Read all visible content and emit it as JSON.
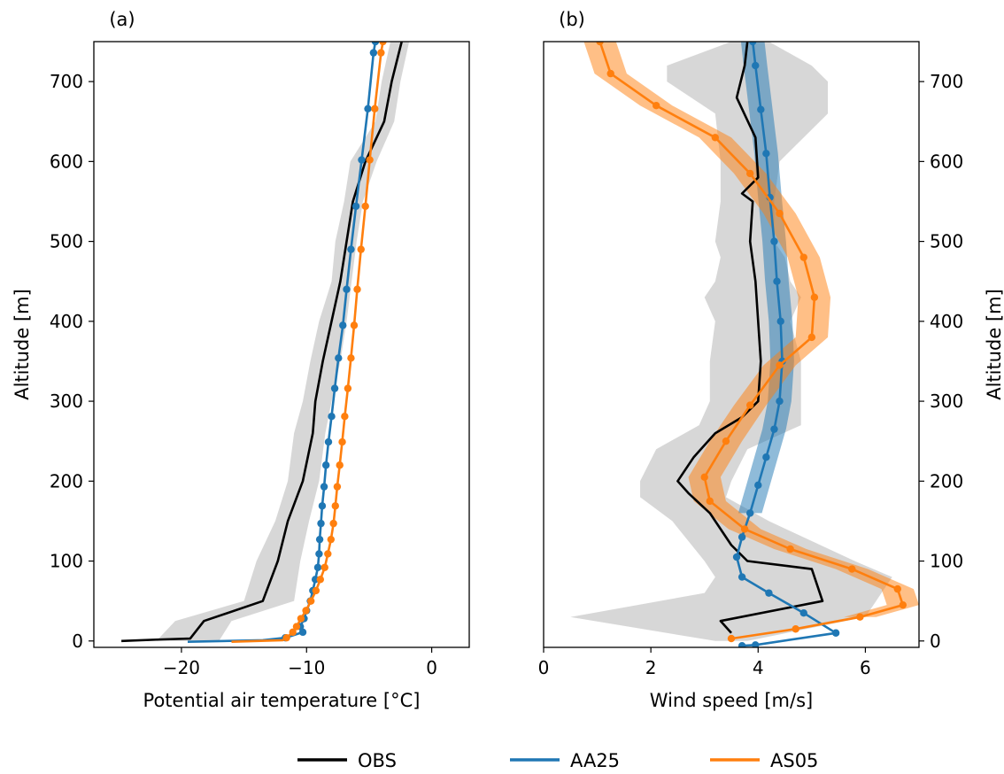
{
  "legend": {
    "placement": "bottom-center",
    "entries": [
      {
        "label": "OBS",
        "color": "#000000"
      },
      {
        "label": "AA25",
        "color": "#1f77b4"
      },
      {
        "label": "AS05",
        "color": "#ff7f0e"
      }
    ]
  },
  "chart_data": [
    {
      "type": "line",
      "panel_label": "(a)",
      "xlabel": "Potential air temperature [°C]",
      "ylabel": "Altitude [m]",
      "xlim": [
        -27,
        3
      ],
      "ylim": [
        -8,
        750
      ],
      "xticks": [
        -20,
        -10,
        0
      ],
      "xtick_labels": [
        "−20",
        "−10",
        "0"
      ],
      "yticks": [
        0,
        100,
        200,
        300,
        400,
        500,
        600,
        700
      ],
      "ytick_labels": [
        "0",
        "100",
        "200",
        "300",
        "400",
        "500",
        "600",
        "700"
      ],
      "ylabel_side": "left",
      "grid": false,
      "series": [
        {
          "name": "OBS",
          "color": "#000000",
          "markers": false,
          "points": [
            [
              -24.8,
              0
            ],
            [
              -21.5,
              2
            ],
            [
              -19.3,
              3
            ],
            [
              -18.2,
              25
            ],
            [
              -13.5,
              50
            ],
            [
              -12.3,
              100
            ],
            [
              -11.5,
              150
            ],
            [
              -10.3,
              200
            ],
            [
              -9.5,
              260
            ],
            [
              -9.3,
              300
            ],
            [
              -8.7,
              350
            ],
            [
              -8.0,
              400
            ],
            [
              -7.3,
              450
            ],
            [
              -6.8,
              500
            ],
            [
              -6.3,
              550
            ],
            [
              -5.3,
              600
            ],
            [
              -3.8,
              650
            ],
            [
              -3.2,
              700
            ],
            [
              -2.4,
              750
            ]
          ],
          "band": [
            [
              -22,
              -17,
              0
            ],
            [
              -20.5,
              -16,
              25
            ],
            [
              -15,
              -11,
              50
            ],
            [
              -14,
              -10.5,
              100
            ],
            [
              -12.5,
              -9.8,
              150
            ],
            [
              -11.5,
              -9,
              200
            ],
            [
              -11,
              -8.5,
              260
            ],
            [
              -10.3,
              -8,
              300
            ],
            [
              -9.7,
              -7.3,
              350
            ],
            [
              -9,
              -6.8,
              400
            ],
            [
              -8,
              -6.4,
              450
            ],
            [
              -7.7,
              -6,
              500
            ],
            [
              -7,
              -5.5,
              550
            ],
            [
              -6.5,
              -4.4,
              600
            ],
            [
              -4.5,
              -3,
              650
            ],
            [
              -4,
              -2.5,
              700
            ],
            [
              -3.3,
              -1.8,
              750
            ]
          ]
        },
        {
          "name": "AA25",
          "color": "#1f77b4",
          "markers": true,
          "points": [
            [
              -19.5,
              -1
            ],
            [
              -13.5,
              1
            ],
            [
              -11.7,
              4
            ],
            [
              -10.3,
              11
            ],
            [
              -10.5,
              18
            ],
            [
              -10.2,
              28
            ],
            [
              -10.0,
              38
            ],
            [
              -9.7,
              50
            ],
            [
              -9.5,
              63
            ],
            [
              -9.3,
              77
            ],
            [
              -9.1,
              92
            ],
            [
              -9.0,
              109
            ],
            [
              -8.95,
              127
            ],
            [
              -8.85,
              147
            ],
            [
              -8.75,
              169
            ],
            [
              -8.6,
              193
            ],
            [
              -8.45,
              220
            ],
            [
              -8.25,
              249
            ],
            [
              -8.0,
              281
            ],
            [
              -7.75,
              316
            ],
            [
              -7.45,
              354
            ],
            [
              -7.1,
              395
            ],
            [
              -6.8,
              440
            ],
            [
              -6.45,
              490
            ],
            [
              -6.05,
              544
            ],
            [
              -5.6,
              602
            ],
            [
              -5.1,
              666
            ],
            [
              -4.65,
              736
            ],
            [
              -4.5,
              750
            ]
          ]
        },
        {
          "name": "AS05",
          "color": "#ff7f0e",
          "markers": true,
          "points": [
            [
              -16.0,
              -1
            ],
            [
              -11.9,
              1
            ],
            [
              -11.6,
              4
            ],
            [
              -11.1,
              11
            ],
            [
              -10.8,
              18
            ],
            [
              -10.45,
              28
            ],
            [
              -10.05,
              38
            ],
            [
              -9.65,
              50
            ],
            [
              -9.25,
              63
            ],
            [
              -8.9,
              77
            ],
            [
              -8.55,
              92
            ],
            [
              -8.3,
              109
            ],
            [
              -8.05,
              127
            ],
            [
              -7.85,
              147
            ],
            [
              -7.7,
              169
            ],
            [
              -7.55,
              193
            ],
            [
              -7.35,
              220
            ],
            [
              -7.15,
              249
            ],
            [
              -6.95,
              281
            ],
            [
              -6.7,
              316
            ],
            [
              -6.45,
              354
            ],
            [
              -6.2,
              395
            ],
            [
              -5.95,
              440
            ],
            [
              -5.65,
              490
            ],
            [
              -5.3,
              544
            ],
            [
              -4.95,
              602
            ],
            [
              -4.55,
              666
            ],
            [
              -4.05,
              736
            ],
            [
              -3.9,
              750
            ]
          ]
        }
      ]
    },
    {
      "type": "line",
      "panel_label": "(b)",
      "xlabel": "Wind speed [m/s]",
      "ylabel": "Altitude [m]",
      "xlim": [
        0,
        7
      ],
      "ylim": [
        -8,
        750
      ],
      "xticks": [
        0,
        2,
        4,
        6
      ],
      "xtick_labels": [
        "0",
        "2",
        "4",
        "6"
      ],
      "yticks": [
        0,
        100,
        200,
        300,
        400,
        500,
        600,
        700
      ],
      "ytick_labels": [
        "0",
        "100",
        "200",
        "300",
        "400",
        "500",
        "600",
        "700"
      ],
      "ylabel_side": "right",
      "grid": false,
      "series": [
        {
          "name": "OBS",
          "color": "#000000",
          "markers": false,
          "points": [
            [
              3.5,
              10
            ],
            [
              3.3,
              25
            ],
            [
              5.2,
              50
            ],
            [
              5.0,
              90
            ],
            [
              3.8,
              100
            ],
            [
              3.5,
              120
            ],
            [
              3.1,
              160
            ],
            [
              2.7,
              185
            ],
            [
              2.5,
              200
            ],
            [
              2.8,
              230
            ],
            [
              3.2,
              260
            ],
            [
              3.7,
              280
            ],
            [
              4.0,
              300
            ],
            [
              4.05,
              350
            ],
            [
              4.0,
              400
            ],
            [
              3.95,
              450
            ],
            [
              3.85,
              500
            ],
            [
              3.9,
              550
            ],
            [
              3.7,
              560
            ],
            [
              4.0,
              580
            ],
            [
              3.95,
              630
            ],
            [
              3.6,
              680
            ],
            [
              3.75,
              720
            ],
            [
              3.8,
              750
            ]
          ],
          "band": [
            [
              3.2,
              3.8,
              0
            ],
            [
              0.5,
              6.0,
              30
            ],
            [
              3.0,
              6.3,
              60
            ],
            [
              3.2,
              6.5,
              80
            ],
            [
              3.0,
              5.8,
              100
            ],
            [
              2.4,
              4.2,
              150
            ],
            [
              1.8,
              3.4,
              180
            ],
            [
              1.8,
              3.5,
              200
            ],
            [
              2.1,
              3.8,
              240
            ],
            [
              2.9,
              4.8,
              270
            ],
            [
              3.1,
              4.8,
              300
            ],
            [
              3.1,
              4.8,
              350
            ],
            [
              3.2,
              4.6,
              400
            ],
            [
              3.0,
              4.8,
              430
            ],
            [
              3.2,
              4.6,
              450
            ],
            [
              3.3,
              4.5,
              480
            ],
            [
              3.2,
              4.3,
              500
            ],
            [
              3.3,
              4.3,
              550
            ],
            [
              3.3,
              4.4,
              600
            ],
            [
              3.2,
              5.3,
              660
            ],
            [
              2.3,
              5.3,
              700
            ],
            [
              2.3,
              5.0,
              720
            ],
            [
              3.5,
              4.2,
              750
            ]
          ]
        },
        {
          "name": "AA25",
          "color": "#1f77b4",
          "markers": true,
          "points": [
            [
              3.7,
              -6
            ],
            [
              3.95,
              -5
            ],
            [
              5.45,
              10
            ],
            [
              4.85,
              35
            ],
            [
              4.2,
              60
            ],
            [
              3.7,
              80
            ],
            [
              3.6,
              105
            ],
            [
              3.7,
              130
            ],
            [
              3.85,
              160
            ],
            [
              4.0,
              195
            ],
            [
              4.15,
              230
            ],
            [
              4.3,
              265
            ],
            [
              4.4,
              300
            ],
            [
              4.45,
              350
            ],
            [
              4.42,
              400
            ],
            [
              4.35,
              450
            ],
            [
              4.3,
              500
            ],
            [
              4.22,
              555
            ],
            [
              4.15,
              610
            ],
            [
              4.05,
              665
            ],
            [
              3.95,
              720
            ],
            [
              3.9,
              750
            ]
          ],
          "band_halfwidth": 0.22,
          "band_from_y": 140
        },
        {
          "name": "AS05",
          "color": "#ff7f0e",
          "markers": true,
          "points": [
            [
              3.5,
              3
            ],
            [
              4.7,
              15
            ],
            [
              5.9,
              30
            ],
            [
              6.7,
              45
            ],
            [
              6.6,
              65
            ],
            [
              5.75,
              90
            ],
            [
              4.6,
              115
            ],
            [
              3.75,
              140
            ],
            [
              3.1,
              175
            ],
            [
              3.0,
              205
            ],
            [
              3.4,
              250
            ],
            [
              3.85,
              295
            ],
            [
              4.4,
              345
            ],
            [
              5.0,
              380
            ],
            [
              5.05,
              430
            ],
            [
              4.85,
              480
            ],
            [
              4.4,
              535
            ],
            [
              3.85,
              585
            ],
            [
              3.2,
              630
            ],
            [
              2.1,
              670
            ],
            [
              1.25,
              710
            ],
            [
              1.05,
              750
            ]
          ],
          "band_halfwidth": 0.3,
          "band_from_y": 20
        }
      ]
    }
  ]
}
